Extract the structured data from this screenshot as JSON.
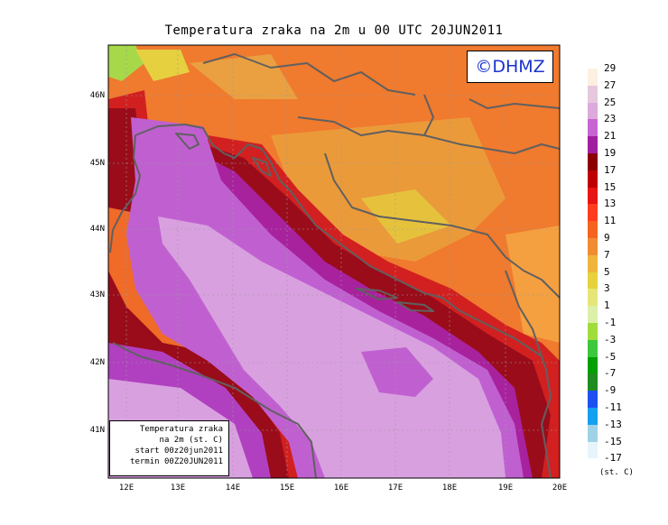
{
  "title": "Temperatura zraka na 2m u 00 UTC 20JUN2011",
  "logo": "©DHMZ",
  "info": {
    "line1": "Temperatura zraka",
    "line2": "na 2m (st. C)",
    "line3": "start 00z20jun2011",
    "line4": "termin 00Z20JUN2011"
  },
  "lat_labels": [
    "46N",
    "45N",
    "44N",
    "43N",
    "42N",
    "41N"
  ],
  "lon_labels": [
    "12E",
    "13E",
    "14E",
    "15E",
    "16E",
    "17E",
    "18E",
    "19E",
    "20E"
  ],
  "legend": {
    "unit": "(st. C)",
    "labels": [
      "29",
      "27",
      "25",
      "23",
      "21",
      "19",
      "17",
      "15",
      "13",
      "11",
      "9",
      "7",
      "5",
      "3",
      "1",
      "-1",
      "-3",
      "-5",
      "-7",
      "-9",
      "-11",
      "-13",
      "-15",
      "-17"
    ],
    "colors": [
      "#fdf0e0",
      "#e6c8dc",
      "#dcaadc",
      "#c864d2",
      "#a01ea0",
      "#8c0000",
      "#be0000",
      "#e61414",
      "#ff3c1e",
      "#f5641e",
      "#f08c32",
      "#f0b43c",
      "#e6d23c",
      "#e6e678",
      "#dcf0aa",
      "#a0dc3c",
      "#3cc83c",
      "#00a000",
      "#1e8c1e",
      "#1e50f0",
      "#14a0f0",
      "#a0d2e6",
      "#e6f5fa",
      "#ffffff"
    ]
  },
  "colors": {
    "sea": "#d9a0e0",
    "coast_purple": "#c060d0",
    "land_orange": "#f08030",
    "coastline": "#606060"
  }
}
